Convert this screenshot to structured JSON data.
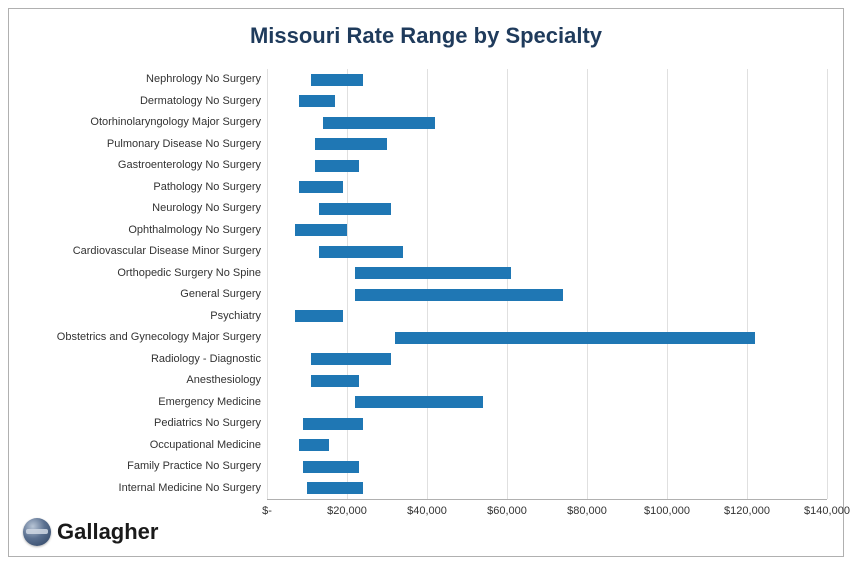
{
  "chart": {
    "type": "range-bar-horizontal",
    "title": "Missouri Rate Range by Specialty",
    "title_fontsize": 22,
    "title_color": "#1f3b5c",
    "background_color": "#ffffff",
    "border_color": "#b0b0b0",
    "bar_color": "#1f77b4",
    "grid_color": "#e0e0e0",
    "label_color": "#333333",
    "label_fontsize": 11,
    "x_axis": {
      "min": 0,
      "max": 140000,
      "tick_step": 20000,
      "ticks": [
        "$-",
        "$20,000",
        "$40,000",
        "$60,000",
        "$80,000",
        "$100,000",
        "$120,000",
        "$140,000"
      ]
    },
    "bar_thickness_ratio": 0.55,
    "rows": [
      {
        "label": "Nephrology No Surgery",
        "low": 11000,
        "high": 24000
      },
      {
        "label": "Dermatology No Surgery",
        "low": 8000,
        "high": 17000
      },
      {
        "label": "Otorhinolaryngology Major Surgery",
        "low": 14000,
        "high": 42000
      },
      {
        "label": "Pulmonary Disease No Surgery",
        "low": 12000,
        "high": 30000
      },
      {
        "label": "Gastroenterology No Surgery",
        "low": 12000,
        "high": 23000
      },
      {
        "label": "Pathology No Surgery",
        "low": 8000,
        "high": 19000
      },
      {
        "label": "Neurology No Surgery",
        "low": 13000,
        "high": 31000
      },
      {
        "label": "Ophthalmology No Surgery",
        "low": 7000,
        "high": 20000
      },
      {
        "label": "Cardiovascular Disease Minor Surgery",
        "low": 13000,
        "high": 34000
      },
      {
        "label": "Orthopedic Surgery No Spine",
        "low": 22000,
        "high": 61000
      },
      {
        "label": "General Surgery",
        "low": 22000,
        "high": 74000
      },
      {
        "label": "Psychiatry",
        "low": 7000,
        "high": 19000
      },
      {
        "label": "Obstetrics and Gynecology Major Surgery",
        "low": 32000,
        "high": 122000
      },
      {
        "label": "Radiology - Diagnostic",
        "low": 11000,
        "high": 31000
      },
      {
        "label": "Anesthesiology",
        "low": 11000,
        "high": 23000
      },
      {
        "label": "Emergency Medicine",
        "low": 22000,
        "high": 54000
      },
      {
        "label": "Pediatrics No Surgery",
        "low": 9000,
        "high": 24000
      },
      {
        "label": "Occupational Medicine",
        "low": 8000,
        "high": 15500
      },
      {
        "label": "Family Practice No Surgery",
        "low": 9000,
        "high": 23000
      },
      {
        "label": "Internal Medicine No Surgery",
        "low": 10000,
        "high": 24000
      }
    ]
  },
  "logo": {
    "text": "Gallagher",
    "fontsize": 22,
    "color": "#1a1a1a"
  }
}
